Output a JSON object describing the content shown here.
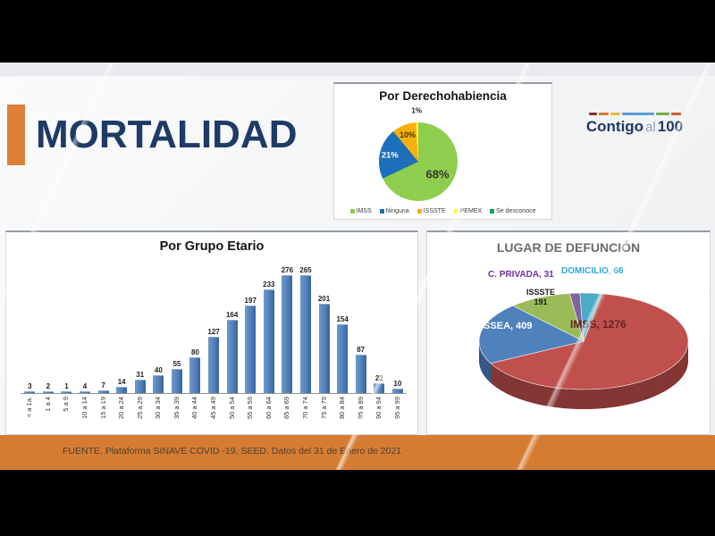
{
  "slide": {
    "title": "MORTALIDAD",
    "footer": "FUENTE. Plataforma SINAVE COVID -19, SEED. Datos del 31 de Enero de 2021",
    "logo": {
      "word1": "Contigo",
      "word2": "al",
      "word3": "100"
    }
  },
  "colors": {
    "accent_orange": "#DE8038",
    "footer_orange": "#D67C32",
    "title_navy": "#1E3A66",
    "bar_blue": "#4F81BD"
  },
  "logo_dashes": [
    "#8a2e2b",
    "#d97b33",
    "#e8b93d",
    "#5b9bd5",
    "#6fae46",
    "#cf5b32"
  ],
  "chart_data": [
    {
      "id": "por-derechohabiencia",
      "type": "pie",
      "title": "Por Derechohabiencia",
      "legend_position": "bottom",
      "series": [
        {
          "label": "IMSS",
          "pct": 68,
          "color": "#8FCD4E",
          "slice_label": "68%",
          "label_color": "#333333"
        },
        {
          "label": "Ninguna",
          "pct": 21,
          "color": "#1C6FBA",
          "slice_label": "21%",
          "label_color": "#FFFFFF"
        },
        {
          "label": "ISSSTE",
          "pct": 10,
          "color": "#F7B10D",
          "slice_label": "10%",
          "label_color": "#4a3a10"
        },
        {
          "label": "PEMEX",
          "pct": 1,
          "color": "#FDF43B",
          "slice_label": "1%",
          "label_color": "#1a1a1a"
        },
        {
          "label": "Se desconoce",
          "pct": 0,
          "color": "#00A551",
          "slice_label": "",
          "label_color": "#1a1a1a"
        }
      ]
    },
    {
      "id": "por-grupo-etario",
      "type": "bar",
      "title": "Por Grupo Etario",
      "categories": [
        "< a 1a.",
        "1 a 4",
        "5 a 9",
        "10 a 14",
        "15 a 19",
        "20 a 24",
        "25 a 29",
        "30 a 34",
        "35 a 39",
        "40 a 44",
        "45 a 49",
        "50 a 54",
        "55 a 59",
        "60 a 64",
        "65 a 69",
        "70 a 74",
        "75 a 79",
        "80 a 84",
        "85 a 89",
        "90 a 94",
        "95 a 99"
      ],
      "values": [
        3,
        2,
        1,
        4,
        7,
        14,
        31,
        40,
        55,
        80,
        127,
        164,
        197,
        233,
        276,
        265,
        201,
        154,
        87,
        22,
        10
      ],
      "bar_color": "#4F81BD",
      "ylim": [
        0,
        290
      ],
      "grid": false
    },
    {
      "id": "lugar-de-defuncion",
      "type": "pie3d",
      "title": "LUGAR DE DEFUNCIÓN",
      "rotation_deg": 10,
      "series": [
        {
          "label": "IMSS",
          "value": 1276,
          "color": "#C0504D",
          "callout": "IMSS, 1276",
          "callout_color": "#632423"
        },
        {
          "label": "ISSEA",
          "value": 409,
          "color": "#4F81BD",
          "callout": "ISSEA, 409",
          "callout_color": "#FFFFFF"
        },
        {
          "label": "ISSSTE",
          "value": 191,
          "color": "#9BBB59",
          "callout": "ISSSTE\n191",
          "callout_color": "#1A1A1A"
        },
        {
          "label": "C. PRIVADA",
          "value": 31,
          "color": "#8064A2",
          "callout": "C. PRIVADA, 31",
          "callout_color": "#7030A0"
        },
        {
          "label": "DOMICILIO",
          "value": 66,
          "color": "#4BACC6",
          "callout": "DOMICILIO, 66",
          "callout_color": "#31A9DC"
        }
      ]
    }
  ]
}
